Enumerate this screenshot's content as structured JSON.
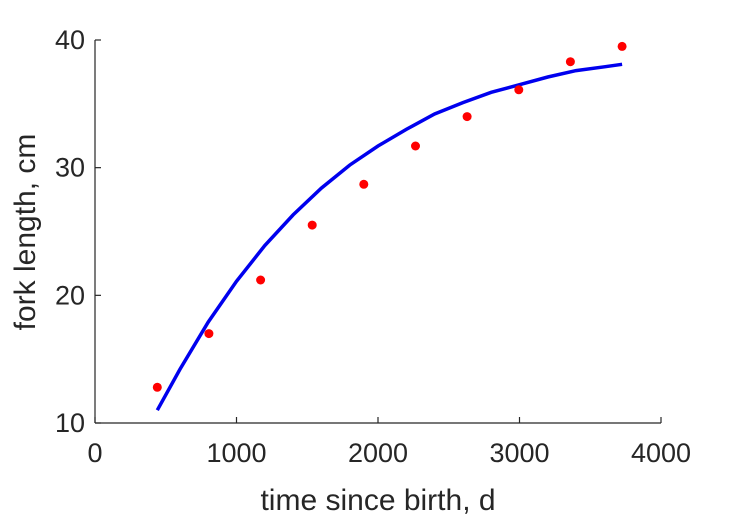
{
  "chart_data": {
    "type": "scatter",
    "title": "",
    "xlabel": "time since birth, d",
    "ylabel": "fork length, cm",
    "xlim": [
      0,
      4000
    ],
    "ylim": [
      10,
      40
    ],
    "xticks": [
      0,
      1000,
      2000,
      3000,
      4000
    ],
    "yticks": [
      10,
      20,
      30,
      40
    ],
    "xtick_labels": [
      "0",
      "1000",
      "2000",
      "3000",
      "4000"
    ],
    "ytick_labels": [
      "10",
      "20",
      "30",
      "40"
    ],
    "grid": false,
    "legend": "none",
    "series": [
      {
        "kind": "scatter",
        "color": "#ff0000",
        "x": [
          440,
          805,
          1170,
          1535,
          1900,
          2265,
          2630,
          2995,
          3360,
          3725
        ],
        "y": [
          12.8,
          17.0,
          21.2,
          25.5,
          28.7,
          31.7,
          34.0,
          36.1,
          38.3,
          39.5
        ]
      },
      {
        "kind": "line",
        "color": "#0000ee",
        "x": [
          440,
          600,
          800,
          1000,
          1200,
          1400,
          1600,
          1800,
          2000,
          2200,
          2400,
          2600,
          2800,
          3000,
          3200,
          3400,
          3600,
          3725
        ],
        "y": [
          11.0,
          14.2,
          17.9,
          21.1,
          23.9,
          26.3,
          28.4,
          30.2,
          31.7,
          33.0,
          34.2,
          35.1,
          35.9,
          36.5,
          37.1,
          37.6,
          37.9,
          38.1
        ]
      }
    ]
  }
}
